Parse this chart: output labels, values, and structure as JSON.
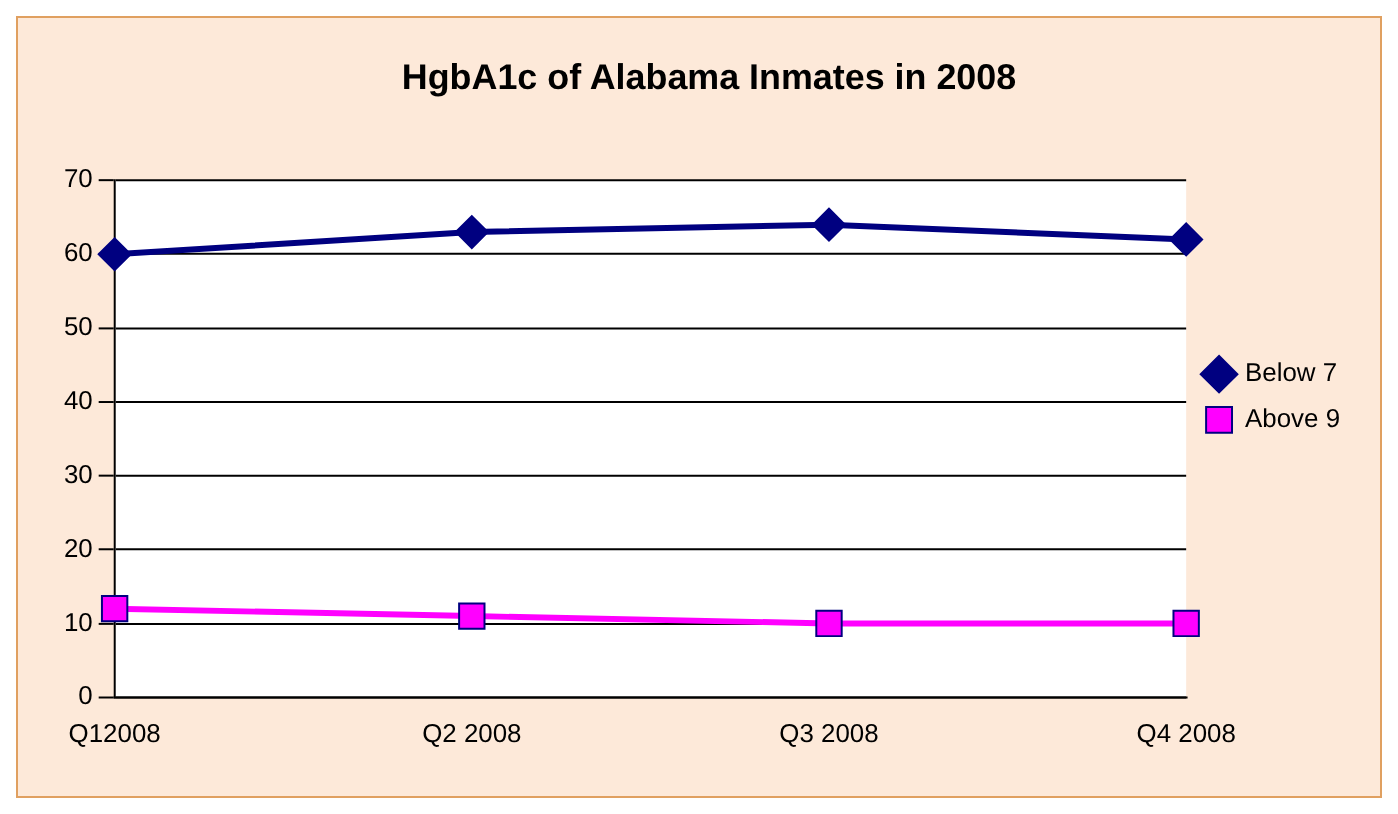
{
  "chart_data": {
    "type": "line",
    "title": "HgbA1c of Alabama Inmates in 2008",
    "categories": [
      "Q12008",
      "Q2 2008",
      "Q3 2008",
      "Q4 2008"
    ],
    "series": [
      {
        "name": "Below 7",
        "color": "#000080",
        "values": [
          60,
          63,
          64,
          62
        ],
        "marker": "diamond"
      },
      {
        "name": "Above 9",
        "color": "#ff00ff",
        "values": [
          12,
          11,
          10,
          10
        ],
        "marker": "square"
      }
    ],
    "ylim": [
      0,
      70
    ],
    "yticks": [
      0,
      10,
      20,
      30,
      40,
      50,
      60,
      70
    ],
    "grid": "y",
    "legend": "right"
  }
}
